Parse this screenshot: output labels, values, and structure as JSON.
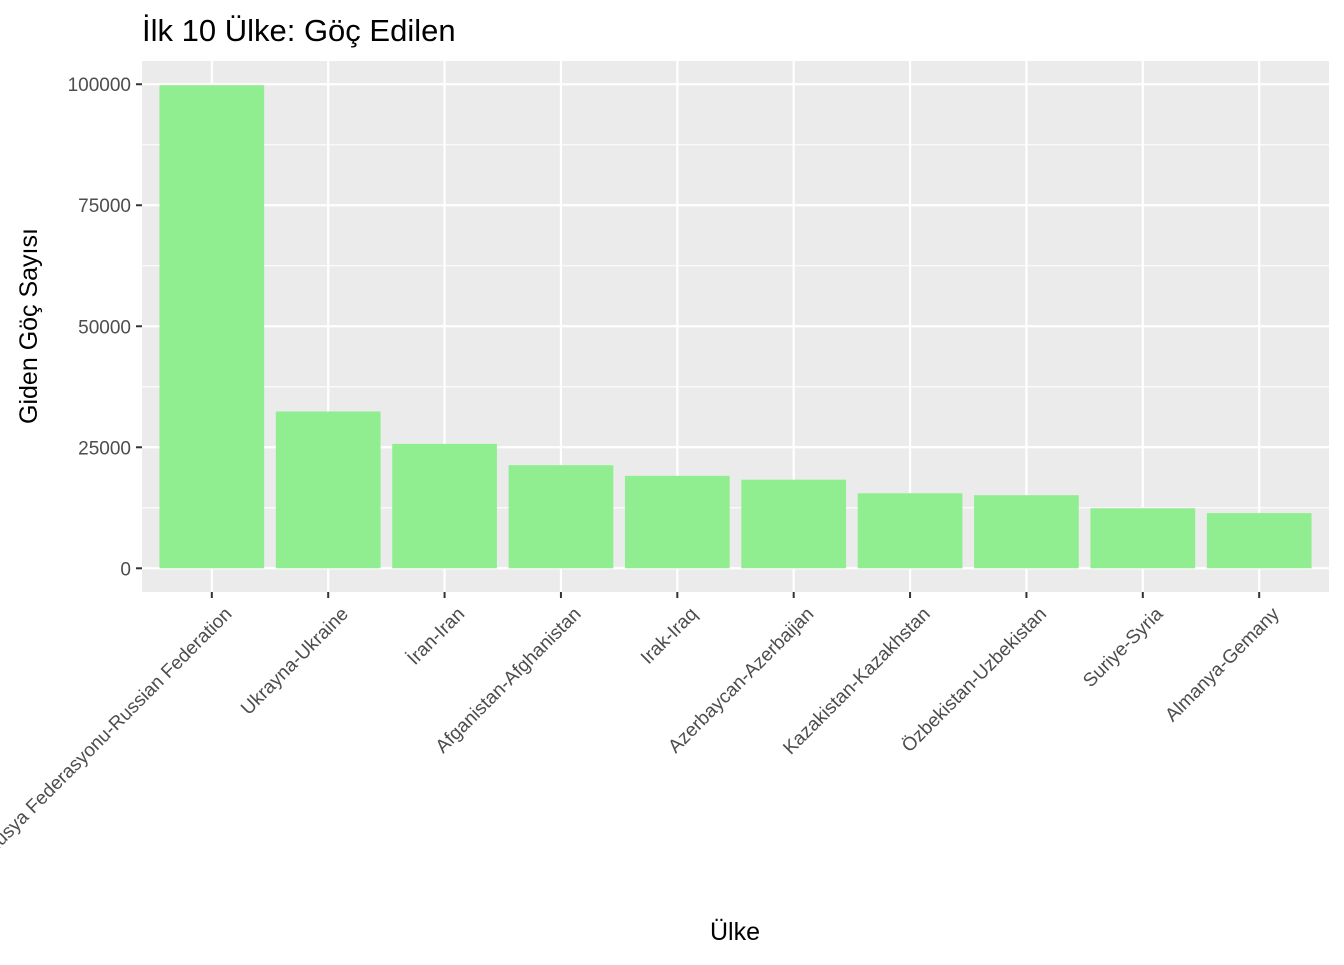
{
  "chart_data": {
    "type": "bar",
    "title": "İlk 10 Ülke: Göç Edilen",
    "xlabel": "Ülke",
    "ylabel": "Giden Göç Sayısı",
    "categories": [
      "Rusya Federasyonu-Russian Federation",
      "Ukrayna-Ukraine",
      "İran-Iran",
      "Afganistan-Afghanistan",
      "Irak-Iraq",
      "Azerbaycan-Azerbaijan",
      "Kazakistan-Kazakhstan",
      "Özbekistan-Uzbekistan",
      "Suriye-Syria",
      "Almanya-Gemany"
    ],
    "values": [
      99800,
      32400,
      25700,
      21300,
      19100,
      18300,
      15500,
      15100,
      12400,
      11400
    ],
    "ylim": [
      -4900,
      104800
    ],
    "yticks": [
      0,
      25000,
      50000,
      75000,
      100000
    ],
    "ytick_labels": [
      "0",
      "25000",
      "50000",
      "75000",
      "100000"
    ],
    "bar_color": "#90EE90",
    "panel_background": "#EBEBEB",
    "grid_color": "#FFFFFF",
    "grid": true,
    "legend": "none"
  }
}
